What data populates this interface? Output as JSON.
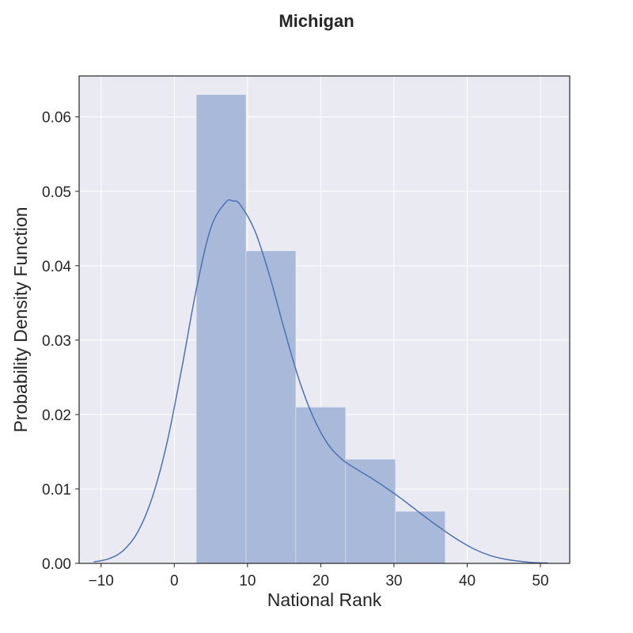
{
  "chart_data": {
    "type": "bar",
    "title": "Michigan",
    "xlabel": "National Rank",
    "ylabel": "Probability Density Function",
    "xlim": [
      -13,
      54
    ],
    "ylim": [
      0,
      0.0655
    ],
    "x_ticks": [
      -10,
      0,
      10,
      20,
      30,
      40,
      50
    ],
    "x_tick_labels": [
      "−10",
      "0",
      "10",
      "20",
      "30",
      "40",
      "50"
    ],
    "y_ticks": [
      0.0,
      0.01,
      0.02,
      0.03,
      0.04,
      0.05,
      0.06
    ],
    "y_tick_labels": [
      "0.00",
      "0.01",
      "0.02",
      "0.03",
      "0.04",
      "0.05",
      "0.06"
    ],
    "grid": true,
    "histogram": {
      "bin_edges": [
        3.0,
        9.8,
        16.6,
        23.4,
        30.2,
        37.0
      ],
      "density": [
        0.063,
        0.042,
        0.021,
        0.014,
        0.007
      ],
      "color": "#a9b9d9"
    },
    "kde": {
      "color": "#4c72b0",
      "x": [
        -11,
        -9,
        -7,
        -5,
        -3,
        -1,
        1,
        3,
        5,
        7,
        8,
        9,
        11,
        13,
        15,
        17,
        19,
        21,
        23,
        25,
        27,
        29,
        31,
        33,
        35,
        37,
        39,
        41,
        43,
        45,
        47,
        49,
        51
      ],
      "y": [
        0.0002,
        0.0006,
        0.0017,
        0.0042,
        0.0089,
        0.0162,
        0.0261,
        0.0368,
        0.0451,
        0.0485,
        0.0487,
        0.0482,
        0.0447,
        0.0387,
        0.0315,
        0.0248,
        0.0196,
        0.016,
        0.0139,
        0.0126,
        0.0114,
        0.0101,
        0.0087,
        0.0072,
        0.0057,
        0.0043,
        0.003,
        0.0019,
        0.0011,
        0.0006,
        0.0003,
        0.0001,
        5e-05
      ]
    },
    "colors": {
      "plot_background": "#eaeaf2",
      "grid": "#ffffff",
      "text": "#262626"
    }
  }
}
